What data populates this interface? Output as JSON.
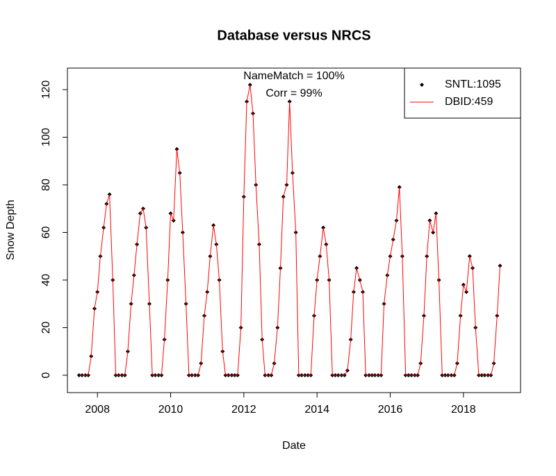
{
  "chart_data": {
    "type": "scatter-line",
    "title": "Database versus NRCS",
    "x_label": "Date",
    "y_label": "Snow Depth",
    "annotations": [
      "NameMatch = 100%",
      "Corr = 99%"
    ],
    "xlim": [
      2007.18,
      2019.56
    ],
    "ylim": [
      -7.3,
      129.05
    ],
    "xticks": [
      2008,
      2010,
      2012,
      2014,
      2016,
      2018
    ],
    "yticks": [
      0,
      20,
      40,
      60,
      80,
      100,
      120
    ],
    "legend_position": "topright",
    "x": [
      2007.5,
      2007.58,
      2007.67,
      2007.75,
      2007.83,
      2007.92,
      2008,
      2008.08,
      2008.17,
      2008.25,
      2008.33,
      2008.42,
      2008.5,
      2008.58,
      2008.67,
      2008.75,
      2008.83,
      2008.92,
      2009,
      2009.08,
      2009.17,
      2009.25,
      2009.33,
      2009.42,
      2009.5,
      2009.58,
      2009.67,
      2009.75,
      2009.83,
      2009.92,
      2010,
      2010.08,
      2010.17,
      2010.25,
      2010.33,
      2010.42,
      2010.5,
      2010.58,
      2010.67,
      2010.75,
      2010.83,
      2010.92,
      2011,
      2011.08,
      2011.17,
      2011.25,
      2011.33,
      2011.42,
      2011.5,
      2011.58,
      2011.67,
      2011.75,
      2011.83,
      2011.92,
      2012,
      2012.08,
      2012.17,
      2012.25,
      2012.33,
      2012.42,
      2012.5,
      2012.58,
      2012.67,
      2012.75,
      2012.83,
      2012.92,
      2013,
      2013.08,
      2013.17,
      2013.25,
      2013.33,
      2013.42,
      2013.5,
      2013.58,
      2013.67,
      2013.75,
      2013.83,
      2013.92,
      2014,
      2014.08,
      2014.17,
      2014.25,
      2014.33,
      2014.42,
      2014.5,
      2014.58,
      2014.67,
      2014.75,
      2014.83,
      2014.92,
      2015,
      2015.08,
      2015.17,
      2015.25,
      2015.33,
      2015.42,
      2015.5,
      2015.58,
      2015.67,
      2015.75,
      2015.83,
      2015.92,
      2016,
      2016.08,
      2016.17,
      2016.25,
      2016.33,
      2016.42,
      2016.5,
      2016.58,
      2016.67,
      2016.75,
      2016.83,
      2016.92,
      2017,
      2017.08,
      2017.17,
      2017.25,
      2017.33,
      2017.42,
      2017.5,
      2017.58,
      2017.67,
      2017.75,
      2017.83,
      2017.92,
      2018,
      2018.08,
      2018.17,
      2018.25,
      2018.33,
      2018.42,
      2018.5,
      2018.58,
      2018.67,
      2018.75,
      2018.83,
      2018.92,
      2019
    ],
    "series": [
      {
        "name": "SNTL:1095",
        "color": "#000000",
        "style": "points",
        "values": [
          0,
          0,
          0,
          0,
          8,
          28,
          35,
          50,
          62,
          72,
          76,
          40,
          0,
          0,
          0,
          0,
          10,
          30,
          42,
          55,
          68,
          70,
          62,
          30,
          0,
          0,
          0,
          0,
          15,
          40,
          68,
          65,
          95,
          85,
          60,
          30,
          0,
          0,
          0,
          0,
          5,
          25,
          35,
          50,
          63,
          55,
          40,
          10,
          0,
          0,
          0,
          0,
          0,
          20,
          75,
          115,
          122,
          110,
          80,
          55,
          15,
          0,
          0,
          0,
          5,
          20,
          45,
          75,
          80,
          115,
          85,
          60,
          0,
          0,
          0,
          0,
          0,
          25,
          40,
          50,
          62,
          55,
          40,
          0,
          0,
          0,
          0,
          0,
          2,
          15,
          35,
          45,
          40,
          35,
          0,
          0,
          0,
          0,
          0,
          0,
          30,
          42,
          50,
          57,
          65,
          79,
          50,
          0,
          0,
          0,
          0,
          0,
          5,
          25,
          50,
          65,
          60,
          68,
          40,
          0,
          0,
          0,
          0,
          0,
          5,
          25,
          38,
          35,
          50,
          45,
          20,
          0,
          0,
          0,
          0,
          0,
          5,
          25,
          46
        ]
      },
      {
        "name": "DBID:459",
        "color": "#ff0000",
        "style": "line",
        "values": [
          0,
          0,
          0,
          0,
          8,
          28,
          35,
          50,
          62,
          72,
          76,
          40,
          0,
          0,
          0,
          0,
          10,
          30,
          42,
          55,
          68,
          70,
          62,
          30,
          0,
          0,
          0,
          0,
          15,
          40,
          68,
          65,
          95,
          85,
          60,
          30,
          0,
          0,
          0,
          0,
          5,
          25,
          35,
          50,
          63,
          55,
          40,
          10,
          0,
          0,
          0,
          0,
          0,
          20,
          75,
          115,
          122,
          110,
          80,
          55,
          15,
          0,
          0,
          0,
          5,
          20,
          45,
          75,
          80,
          115,
          85,
          60,
          0,
          0,
          0,
          0,
          0,
          25,
          40,
          50,
          62,
          55,
          40,
          0,
          0,
          0,
          0,
          0,
          2,
          15,
          35,
          45,
          40,
          35,
          0,
          0,
          0,
          0,
          0,
          0,
          30,
          42,
          50,
          57,
          65,
          79,
          50,
          0,
          0,
          0,
          0,
          0,
          5,
          25,
          50,
          65,
          60,
          68,
          40,
          0,
          0,
          0,
          0,
          0,
          5,
          25,
          38,
          35,
          50,
          45,
          20,
          0,
          0,
          0,
          0,
          0,
          5,
          25,
          46
        ]
      }
    ]
  }
}
